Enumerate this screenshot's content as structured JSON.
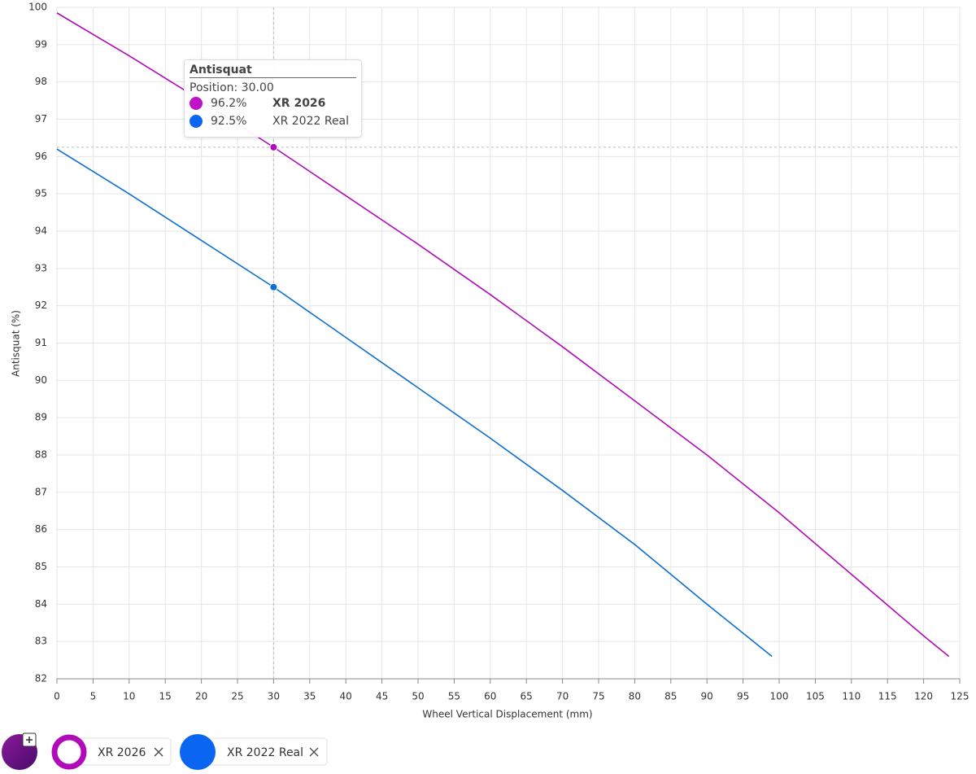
{
  "chart_data": {
    "type": "line",
    "x_label": "Wheel Vertical Displacement (mm)",
    "y_label": "Antisquat (%)",
    "xlim": [
      0,
      125
    ],
    "ylim": [
      82,
      100
    ],
    "xticks": [
      0,
      5,
      10,
      15,
      20,
      25,
      30,
      35,
      40,
      45,
      50,
      55,
      60,
      65,
      70,
      75,
      80,
      85,
      90,
      95,
      100,
      105,
      110,
      115,
      120,
      125
    ],
    "yticks": [
      82,
      83,
      84,
      85,
      86,
      87,
      88,
      89,
      90,
      91,
      92,
      93,
      94,
      95,
      96,
      97,
      98,
      99,
      100
    ],
    "grid": true,
    "series": [
      {
        "name": "XR 2026",
        "color": "#b10ab8",
        "x": [
          0,
          10,
          20,
          30,
          40,
          50,
          60,
          70,
          80,
          90,
          100,
          110,
          120,
          123.5
        ],
        "values": [
          99.85,
          98.7,
          97.5,
          96.25,
          94.95,
          93.65,
          92.3,
          90.9,
          89.45,
          88.0,
          86.45,
          84.8,
          83.15,
          82.6
        ]
      },
      {
        "name": "XR 2022 Real",
        "color": "#0a6fd0",
        "x": [
          0,
          10,
          20,
          30,
          40,
          50,
          60,
          70,
          80,
          90,
          99
        ],
        "values": [
          96.2,
          95.0,
          93.75,
          92.5,
          91.15,
          89.8,
          88.45,
          87.05,
          85.6,
          84.0,
          82.6
        ]
      }
    ],
    "tooltip": {
      "title": "Antisquat",
      "position": "Position: 30.00",
      "rows": [
        {
          "label": "96.2%"
        },
        {
          "label": "92.5%"
        }
      ]
    }
  }
}
